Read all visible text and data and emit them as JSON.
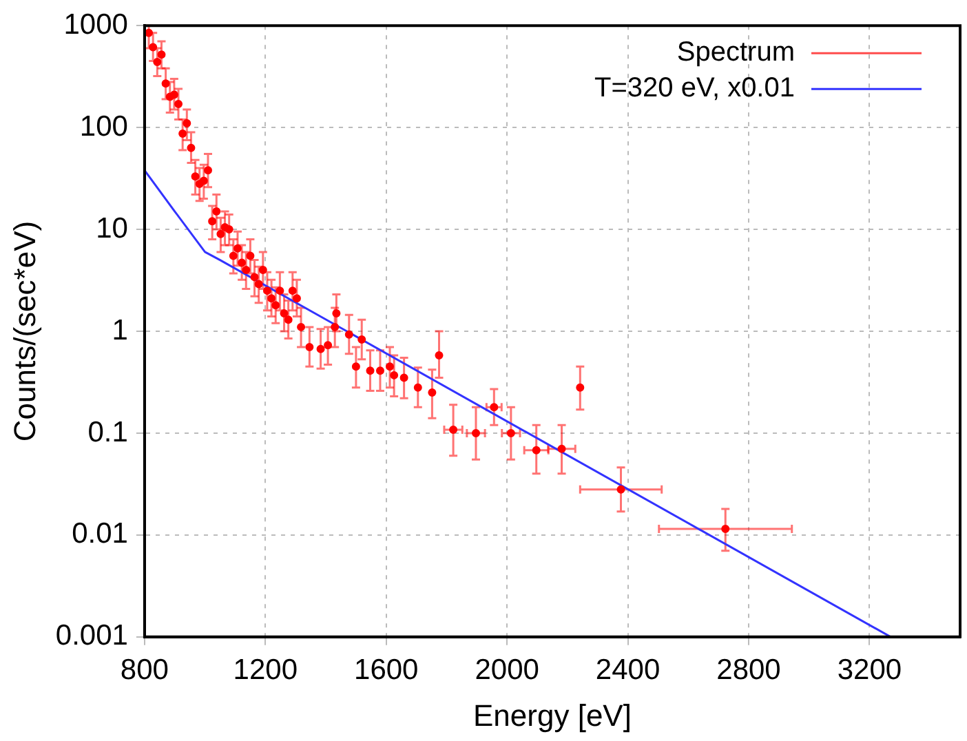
{
  "chart_data": {
    "type": "scatter",
    "xlabel": "Energy [eV]",
    "ylabel": "Counts/(sec*eV)",
    "log": "y",
    "grid": true,
    "legend": "top right",
    "xlim": [
      800,
      3500
    ],
    "xticks": [
      800,
      1200,
      1600,
      2000,
      2400,
      2800,
      3200
    ],
    "ylim": [
      0.001,
      1000
    ],
    "yticks": [
      0.001,
      0.01,
      0.1,
      1,
      10,
      100,
      1000
    ],
    "series": [
      {
        "name": "Spectrum",
        "type": "scatter",
        "color": "#ff0000",
        "marker": "circle",
        "x": [
          814,
          828,
          842,
          856,
          870,
          884,
          898,
          912,
          926,
          940,
          954,
          968,
          982,
          996,
          1010,
          1024,
          1038,
          1052,
          1066,
          1080,
          1094,
          1108,
          1122,
          1136,
          1150,
          1164,
          1178,
          1192,
          1206,
          1220,
          1234,
          1248,
          1262,
          1276,
          1290,
          1304,
          1318,
          1346,
          1383,
          1407,
          1430,
          1435,
          1477,
          1500,
          1519,
          1547,
          1580,
          1612,
          1626,
          1659,
          1705,
          1752,
          1775,
          1822,
          1897,
          1957,
          2013,
          2097,
          2181,
          2242,
          2377,
          2723
        ],
        "values": [
          850,
          615,
          440,
          520,
          270,
          200,
          210,
          170,
          87,
          110,
          63,
          33,
          28,
          30,
          38,
          12,
          15,
          9,
          10.5,
          10,
          5.5,
          6.5,
          4.7,
          4,
          5.5,
          3.4,
          2.9,
          4,
          2.5,
          2.1,
          1.8,
          2.5,
          1.5,
          1.3,
          2.5,
          2.1,
          1.1,
          0.7,
          0.67,
          0.73,
          1.1,
          1.5,
          0.93,
          0.45,
          0.83,
          0.41,
          0.41,
          0.45,
          0.37,
          0.35,
          0.28,
          0.25,
          0.58,
          0.108,
          0.1,
          0.18,
          0.1,
          0.068,
          0.07,
          0.28,
          0.028,
          0.0115
        ],
        "errors": [
          [
            600,
            1000
          ],
          [
            450,
            850
          ],
          [
            320,
            600
          ],
          [
            380,
            700
          ],
          [
            190,
            380
          ],
          [
            140,
            280
          ],
          [
            150,
            300
          ],
          [
            120,
            240
          ],
          [
            60,
            120
          ],
          [
            75,
            150
          ],
          [
            45,
            90
          ],
          [
            22,
            48
          ],
          [
            19,
            40
          ],
          [
            20,
            43
          ],
          [
            26,
            55
          ],
          [
            8,
            17
          ],
          [
            10,
            22
          ],
          [
            6,
            13
          ],
          [
            7,
            15
          ],
          [
            7,
            14
          ],
          [
            3.7,
            8
          ],
          [
            4.4,
            9.5
          ],
          [
            3.2,
            7
          ],
          [
            2.6,
            6
          ],
          [
            3.7,
            8
          ],
          [
            2.2,
            5
          ],
          [
            1.9,
            4.3
          ],
          [
            2.6,
            6
          ],
          [
            1.6,
            3.8
          ],
          [
            1.4,
            3.2
          ],
          [
            1.2,
            2.7
          ],
          [
            1.6,
            3.8
          ],
          [
            1,
            2.3
          ],
          [
            0.85,
            2
          ],
          [
            1.6,
            3.8
          ],
          [
            1.4,
            3.2
          ],
          [
            0.7,
            1.7
          ],
          [
            0.45,
            1.1
          ],
          [
            0.43,
            1.05
          ],
          [
            0.47,
            1.1
          ],
          [
            0.7,
            1.7
          ],
          [
            1,
            2.3
          ],
          [
            0.6,
            1.45
          ],
          [
            0.28,
            0.7
          ],
          [
            0.53,
            1.3
          ],
          [
            0.26,
            0.65
          ],
          [
            0.26,
            0.65
          ],
          [
            0.28,
            0.7
          ],
          [
            0.23,
            0.58
          ],
          [
            0.22,
            0.55
          ],
          [
            0.18,
            0.44
          ],
          [
            0.14,
            0.42
          ],
          [
            0.35,
            1
          ],
          [
            0.06,
            0.19
          ],
          [
            0.055,
            0.18
          ],
          [
            0.12,
            0.27
          ],
          [
            0.055,
            0.18
          ],
          [
            0.04,
            0.12
          ],
          [
            0.04,
            0.12
          ],
          [
            0.17,
            0.45
          ],
          [
            0.017,
            0.046
          ],
          [
            0.007,
            0.018
          ]
        ],
        "xerrors": [
          null,
          null,
          null,
          null,
          null,
          null,
          null,
          null,
          null,
          null,
          null,
          null,
          null,
          null,
          null,
          null,
          null,
          null,
          null,
          null,
          null,
          null,
          null,
          null,
          null,
          null,
          null,
          null,
          null,
          null,
          null,
          null,
          null,
          null,
          null,
          null,
          null,
          null,
          null,
          null,
          null,
          null,
          null,
          null,
          null,
          null,
          null,
          null,
          null,
          null,
          null,
          null,
          null,
          30,
          30,
          25,
          30,
          40,
          45,
          null,
          135,
          220
        ]
      },
      {
        "name": "T=320 eV, x0.01",
        "type": "line",
        "color": "#3333ff",
        "marker": "none",
        "x": [
          800,
          900,
          1000,
          1050,
          3270
        ],
        "values": [
          38,
          15,
          6,
          5,
          0.001
        ]
      }
    ]
  }
}
